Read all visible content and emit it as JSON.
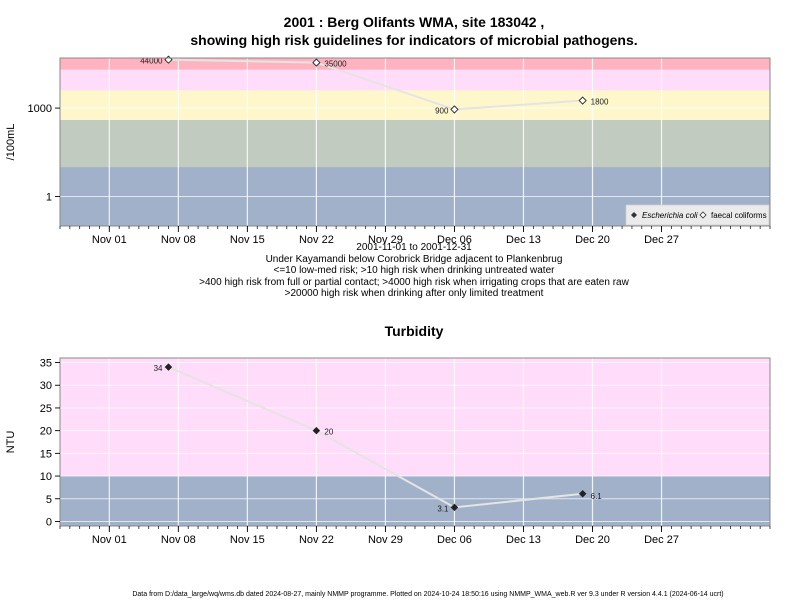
{
  "chart_data": [
    {
      "type": "scatter",
      "title_line1": "2001 : Berg Olifants WMA, site 183042 ,",
      "title_line2": "showing high risk guidelines for indicators of microbial pathogens.",
      "ylabel": "/100mL",
      "yscale": "log",
      "x_tick_labels": [
        "Nov 01",
        "Nov 08",
        "Nov 15",
        "Nov 22",
        "Nov 29",
        "Dec 06",
        "Dec 13",
        "Dec 20",
        "Dec 27"
      ],
      "y_tick_labels": [
        "1",
        "1000"
      ],
      "grid": true,
      "bands": [
        {
          "from": 0.1,
          "to": 10,
          "color": "#a0b1c9"
        },
        {
          "from": 10,
          "to": 400,
          "color": "#c2cbc0"
        },
        {
          "from": 400,
          "to": 4000,
          "color": "#fff7cc"
        },
        {
          "from": 4000,
          "to": 20000,
          "color": "#ffdcf9"
        },
        {
          "from": 20000,
          "to": 50000,
          "color": "#ffb3c1"
        }
      ],
      "line_color": "#e4e4e4",
      "series": [
        {
          "name": "Escherichia coli",
          "marker": "filled-diamond",
          "points": []
        },
        {
          "name": "faecal coliforms",
          "marker": "open-diamond",
          "points": [
            {
              "date": "2001-11-07",
              "value": 44000,
              "label": "44000"
            },
            {
              "date": "2001-11-22",
              "value": 35000,
              "label": "35000"
            },
            {
              "date": "2001-12-06",
              "value": 900,
              "label": "900"
            },
            {
              "date": "2001-12-19",
              "value": 1800,
              "label": "1800"
            }
          ]
        }
      ],
      "legend_position": "bottom-right",
      "caption_lines": [
        "2001-11-01 to 2001-12-31",
        "Under Kayamandi below Corobrick Bridge adjacent to Plankenbrug",
        "<=10 low-med risk; >10 high risk when drinking untreated water",
        ">400 high risk from full or partial contact; >4000 high risk when irrigating crops that are eaten raw",
        ">20000 high risk when drinking after only limited treatment"
      ]
    },
    {
      "type": "scatter",
      "title": "Turbidity",
      "ylabel": "NTU",
      "ylim": [
        -1,
        36
      ],
      "y_tick_labels": [
        "0",
        "5",
        "10",
        "15",
        "20",
        "25",
        "30",
        "35"
      ],
      "x_tick_labels": [
        "Nov 01",
        "Nov 08",
        "Nov 15",
        "Nov 22",
        "Nov 29",
        "Dec 06",
        "Dec 13",
        "Dec 20",
        "Dec 27"
      ],
      "grid": true,
      "bands": [
        {
          "from": -1,
          "to": 10,
          "color": "#a0b1c9"
        },
        {
          "from": 10,
          "to": 36,
          "color": "#ffdcf9"
        }
      ],
      "line_color": "#e4e4e4",
      "series": [
        {
          "name": "",
          "marker": "filled-diamond",
          "points": [
            {
              "date": "2001-11-07",
              "value": 34,
              "label": "34"
            },
            {
              "date": "2001-11-22",
              "value": 20,
              "label": "20"
            },
            {
              "date": "2001-12-06",
              "value": 3.1,
              "label": "3.1"
            },
            {
              "date": "2001-12-19",
              "value": 6.1,
              "label": "6.1"
            }
          ]
        }
      ]
    }
  ],
  "footer": "Data from D:/data_large/wq/wms.db dated 2024-08-27, mainly NMMP programme. Plotted on 2024-10-24 18:50:16 using NMMP_WMA_web.R ver 9.3 under R version 4.4.1 (2024-06-14 ucrt)"
}
